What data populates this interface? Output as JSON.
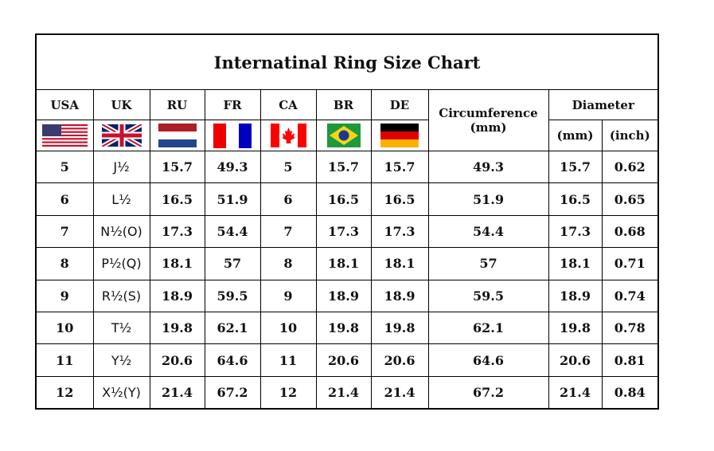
{
  "title": "Internatinal Ring Size Chart",
  "headers": {
    "usa": "USA",
    "uk": "UK",
    "ru": "RU",
    "fr": "FR",
    "ca": "CA",
    "br": "BR",
    "de": "DE",
    "circumference": "Circumference",
    "circumference_unit": "(mm)",
    "diameter": "Diameter",
    "diameter_mm": "(mm)",
    "diameter_inch": "(inch)"
  },
  "flags": [
    "usa-flag-icon",
    "uk-flag-icon",
    "netherlands-flag-icon",
    "france-flag-icon",
    "canada-flag-icon",
    "brazil-flag-icon",
    "germany-flag-icon"
  ],
  "rows": [
    [
      "5",
      "J½",
      "15.7",
      "49.3",
      "5",
      "15.7",
      "15.7",
      "49.3",
      "15.7",
      "0.62"
    ],
    [
      "6",
      "L½",
      "16.5",
      "51.9",
      "6",
      "16.5",
      "16.5",
      "51.9",
      "16.5",
      "0.65"
    ],
    [
      "7",
      "N½(O)",
      "17.3",
      "54.4",
      "7",
      "17.3",
      "17.3",
      "54.4",
      "17.3",
      "0.68"
    ],
    [
      "8",
      "P½(Q)",
      "18.1",
      "57",
      "8",
      "18.1",
      "18.1",
      "57",
      "18.1",
      "0.71"
    ],
    [
      "9",
      "R½(S)",
      "18.9",
      "59.5",
      "9",
      "18.9",
      "18.9",
      "59.5",
      "18.9",
      "0.74"
    ],
    [
      "10",
      "T½",
      "19.8",
      "62.1",
      "10",
      "19.8",
      "19.8",
      "62.1",
      "19.8",
      "0.78"
    ],
    [
      "11",
      "Y½",
      "20.6",
      "64.6",
      "11",
      "20.6",
      "20.6",
      "64.6",
      "20.6",
      "0.81"
    ],
    [
      "12",
      "X½(Y)",
      "21.4",
      "67.2",
      "12",
      "21.4",
      "21.4",
      "67.2",
      "21.4",
      "0.84"
    ]
  ]
}
